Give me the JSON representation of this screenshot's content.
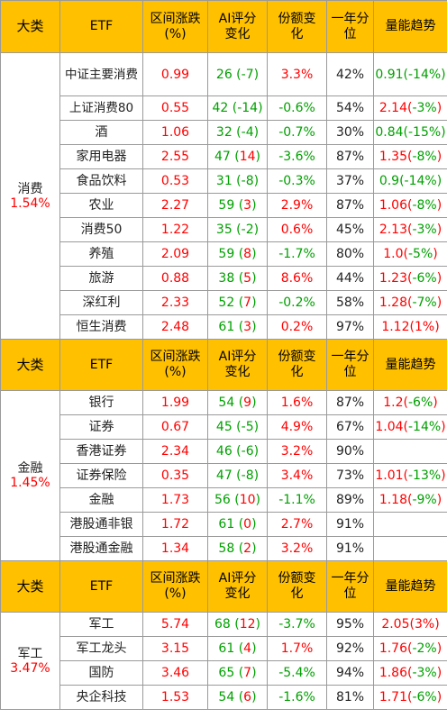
{
  "headers": [
    "大类",
    "ETF",
    "区间涨跌(%)",
    "AI评分变化",
    "份额变化",
    "一年分位",
    "量能趋势"
  ],
  "header_lines": {
    "c0": "大类",
    "c1": "ETF",
    "c2a": "区间涨跌",
    "c2b": "(%)",
    "c3a": "AI评分",
    "c3b": "变化",
    "c4a": "份额变",
    "c4b": "化",
    "c5a": "一年分",
    "c5b": "位",
    "c6": "量能趋势"
  },
  "colors": {
    "header_bg": "#ffc000",
    "up": "#ff0000",
    "down": "#00a000",
    "text": "#222222",
    "border": "#9a9a9a"
  },
  "sections": [
    {
      "name": "消费",
      "change": "1.54%",
      "rows": [
        {
          "etf": "中证主要消费",
          "chg": "0.99",
          "ai": "26",
          "ai_delta": "-7",
          "share": "3.3%",
          "pct": "42%",
          "vol": "0.91",
          "vol_delta": "-14%"
        },
        {
          "etf": "上证消费80",
          "chg": "0.55",
          "ai": "42",
          "ai_delta": "-14",
          "share": "-0.6%",
          "pct": "54%",
          "vol": "2.14",
          "vol_delta": "-3%"
        },
        {
          "etf": "酒",
          "chg": "1.06",
          "ai": "32",
          "ai_delta": "-4",
          "share": "-0.7%",
          "pct": "30%",
          "vol": "0.84",
          "vol_delta": "-15%"
        },
        {
          "etf": "家用电器",
          "chg": "2.55",
          "ai": "47",
          "ai_delta": "14",
          "share": "-3.6%",
          "pct": "87%",
          "vol": "1.35",
          "vol_delta": "-8%"
        },
        {
          "etf": "食品饮料",
          "chg": "0.53",
          "ai": "31",
          "ai_delta": "-8",
          "share": "-0.3%",
          "pct": "37%",
          "vol": "0.9",
          "vol_delta": "-14%"
        },
        {
          "etf": "农业",
          "chg": "2.27",
          "ai": "59",
          "ai_delta": "3",
          "share": "2.9%",
          "pct": "87%",
          "vol": "1.06",
          "vol_delta": "-8%"
        },
        {
          "etf": "消费50",
          "chg": "1.22",
          "ai": "35",
          "ai_delta": "-2",
          "share": "0.6%",
          "pct": "45%",
          "vol": "2.13",
          "vol_delta": "-3%"
        },
        {
          "etf": "养殖",
          "chg": "2.09",
          "ai": "59",
          "ai_delta": "8",
          "share": "-1.7%",
          "pct": "80%",
          "vol": "1.0",
          "vol_delta": "-5%"
        },
        {
          "etf": "旅游",
          "chg": "0.88",
          "ai": "38",
          "ai_delta": "5",
          "share": "8.6%",
          "pct": "44%",
          "vol": "1.23",
          "vol_delta": "-6%"
        },
        {
          "etf": "深红利",
          "chg": "2.33",
          "ai": "52",
          "ai_delta": "7",
          "share": "-0.2%",
          "pct": "58%",
          "vol": "1.28",
          "vol_delta": "-7%"
        },
        {
          "etf": "恒生消费",
          "chg": "2.48",
          "ai": "61",
          "ai_delta": "3",
          "share": "0.2%",
          "pct": "97%",
          "vol": "1.12",
          "vol_delta": "1%"
        }
      ]
    },
    {
      "name": "金融",
      "change": "1.45%",
      "rows": [
        {
          "etf": "银行",
          "chg": "1.99",
          "ai": "54",
          "ai_delta": "9",
          "share": "1.6%",
          "pct": "87%",
          "vol": "1.2",
          "vol_delta": "-6%"
        },
        {
          "etf": "证券",
          "chg": "0.67",
          "ai": "45",
          "ai_delta": "-5",
          "share": "4.9%",
          "pct": "67%",
          "vol": "1.04",
          "vol_delta": "-14%"
        },
        {
          "etf": "香港证券",
          "chg": "2.34",
          "ai": "46",
          "ai_delta": "-6",
          "share": "3.2%",
          "pct": "90%",
          "vol": "",
          "vol_delta": ""
        },
        {
          "etf": "证券保险",
          "chg": "0.35",
          "ai": "47",
          "ai_delta": "-8",
          "share": "3.4%",
          "pct": "73%",
          "vol": "1.01",
          "vol_delta": "-13%"
        },
        {
          "etf": "金融",
          "chg": "1.73",
          "ai": "56",
          "ai_delta": "10",
          "share": "-1.1%",
          "pct": "89%",
          "vol": "1.18",
          "vol_delta": "-9%"
        },
        {
          "etf": "港股通非银",
          "chg": "1.72",
          "ai": "61",
          "ai_delta": "0",
          "share": "2.7%",
          "pct": "91%",
          "vol": "",
          "vol_delta": ""
        },
        {
          "etf": "港股通金融",
          "chg": "1.34",
          "ai": "58",
          "ai_delta": "2",
          "share": "3.2%",
          "pct": "91%",
          "vol": "",
          "vol_delta": ""
        }
      ]
    },
    {
      "name": "军工",
      "change": "3.47%",
      "rows": [
        {
          "etf": "军工",
          "chg": "5.74",
          "ai": "68",
          "ai_delta": "12",
          "share": "-3.7%",
          "pct": "95%",
          "vol": "2.05",
          "vol_delta": "3%"
        },
        {
          "etf": "军工龙头",
          "chg": "3.15",
          "ai": "61",
          "ai_delta": "4",
          "share": "1.7%",
          "pct": "92%",
          "vol": "1.76",
          "vol_delta": "-2%"
        },
        {
          "etf": "国防",
          "chg": "3.46",
          "ai": "65",
          "ai_delta": "7",
          "share": "-5.4%",
          "pct": "94%",
          "vol": "1.86",
          "vol_delta": "-3%"
        },
        {
          "etf": "央企科技",
          "chg": "1.53",
          "ai": "54",
          "ai_delta": "6",
          "share": "-1.6%",
          "pct": "81%",
          "vol": "1.71",
          "vol_delta": "-6%"
        }
      ]
    }
  ],
  "chart_data": {
    "type": "table",
    "columns": [
      "大类",
      "ETF",
      "区间涨跌(%)",
      "AI评分变化",
      "份额变化",
      "一年分位",
      "量能趋势"
    ],
    "groups": [
      {
        "category": "消费",
        "category_change": "1.54%",
        "rows": [
          [
            "中证主要消费",
            0.99,
            "26 (-7)",
            "3.3%",
            "42%",
            "0.91(-14%)"
          ],
          [
            "上证消费80",
            0.55,
            "42 (-14)",
            "-0.6%",
            "54%",
            "2.14(-3%)"
          ],
          [
            "酒",
            1.06,
            "32 (-4)",
            "-0.7%",
            "30%",
            "0.84(-15%)"
          ],
          [
            "家用电器",
            2.55,
            "47 (14)",
            "-3.6%",
            "87%",
            "1.35(-8%)"
          ],
          [
            "食品饮料",
            0.53,
            "31 (-8)",
            "-0.3%",
            "37%",
            "0.9(-14%)"
          ],
          [
            "农业",
            2.27,
            "59 (3)",
            "2.9%",
            "87%",
            "1.06(-8%)"
          ],
          [
            "消费50",
            1.22,
            "35 (-2)",
            "0.6%",
            "45%",
            "2.13(-3%)"
          ],
          [
            "养殖",
            2.09,
            "59 (8)",
            "-1.7%",
            "80%",
            "1.0(-5%)"
          ],
          [
            "旅游",
            0.88,
            "38 (5)",
            "8.6%",
            "44%",
            "1.23(-6%)"
          ],
          [
            "深红利",
            2.33,
            "52 (7)",
            "-0.2%",
            "58%",
            "1.28(-7%)"
          ],
          [
            "恒生消费",
            2.48,
            "61 (3)",
            "0.2%",
            "97%",
            "1.12(1%)"
          ]
        ]
      },
      {
        "category": "金融",
        "category_change": "1.45%",
        "rows": [
          [
            "银行",
            1.99,
            "54 (9)",
            "1.6%",
            "87%",
            "1.2(-6%)"
          ],
          [
            "证券",
            0.67,
            "45 (-5)",
            "4.9%",
            "67%",
            "1.04(-14%)"
          ],
          [
            "香港证券",
            2.34,
            "46 (-6)",
            "3.2%",
            "90%",
            ""
          ],
          [
            "证券保险",
            0.35,
            "47 (-8)",
            "3.4%",
            "73%",
            "1.01(-13%)"
          ],
          [
            "金融",
            1.73,
            "56 (10)",
            "-1.1%",
            "89%",
            "1.18(-9%)"
          ],
          [
            "港股通非银",
            1.72,
            "61 (0)",
            "2.7%",
            "91%",
            ""
          ],
          [
            "港股通金融",
            1.34,
            "58 (2)",
            "3.2%",
            "91%",
            ""
          ]
        ]
      },
      {
        "category": "军工",
        "category_change": "3.47%",
        "rows": [
          [
            "军工",
            5.74,
            "68 (12)",
            "-3.7%",
            "95%",
            "2.05(3%)"
          ],
          [
            "军工龙头",
            3.15,
            "61 (4)",
            "1.7%",
            "92%",
            "1.76(-2%)"
          ],
          [
            "国防",
            3.46,
            "65 (7)",
            "-5.4%",
            "94%",
            "1.86(-3%)"
          ],
          [
            "央企科技",
            1.53,
            "54 (6)",
            "-1.6%",
            "81%",
            "1.71(-6%)"
          ]
        ]
      }
    ]
  }
}
